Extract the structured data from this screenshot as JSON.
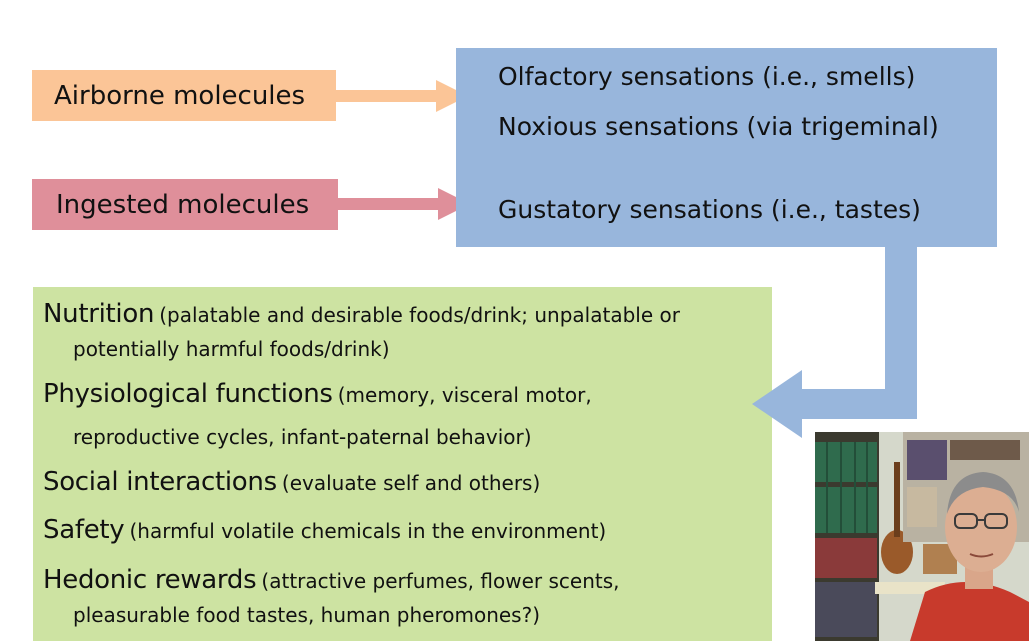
{
  "inputs": {
    "airborne": "Airborne molecules",
    "ingested": "Ingested molecules"
  },
  "sensations": {
    "olfactory": "Olfactory sensations (i.e., smells)",
    "noxious": "Noxious sensations (via trigeminal)",
    "gustatory": "Gustatory sensations (i.e., tastes)"
  },
  "functions": [
    {
      "title": "Nutrition",
      "desc": "(palatable and desirable foods/drink; unpalatable or",
      "cont": "potentially harmful foods/drink)"
    },
    {
      "title": "Physiological functions",
      "desc": "(memory, visceral motor,",
      "cont": "reproductive cycles, infant-paternal behavior)"
    },
    {
      "title": "Social interactions",
      "desc": "(evaluate self and others)"
    },
    {
      "title": "Safety",
      "desc": "(harmful volatile chemicals in the environment)"
    },
    {
      "title": "Hedonic rewards",
      "desc": "(attractive perfumes, flower scents,",
      "cont": "pleasurable food tastes, human pheromones?)"
    }
  ],
  "colors": {
    "airborne": "#fbc597",
    "ingested": "#df8f9a",
    "sensations": "#98b6dc",
    "functions": "#cde3a2",
    "connector": "#98b6dc"
  },
  "webcam": {
    "icon": "presenter-video"
  }
}
